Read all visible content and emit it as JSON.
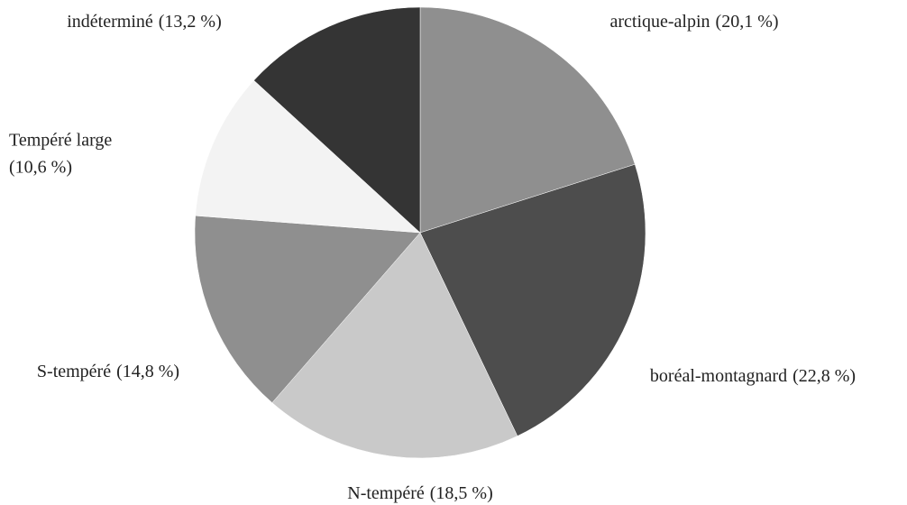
{
  "chart_data": {
    "type": "pie",
    "categories": [
      "arctique-alpin",
      "boréal-montagnard",
      "N-tempéré",
      "S-tempéré",
      "Tempéré large",
      "indéterminé"
    ],
    "values": [
      20.1,
      22.8,
      18.5,
      14.8,
      10.6,
      13.2
    ],
    "value_labels": [
      "(20,1 %)",
      "(22,8 %)",
      "(18,5 %)",
      "(14,8 %)",
      "(10,6 %)",
      "(13,2 %)"
    ],
    "colors": [
      "#8f8f8f",
      "#4d4d4d",
      "#c9c9c9",
      "#8f8f8f",
      "#f3f3f3",
      "#343434"
    ]
  }
}
